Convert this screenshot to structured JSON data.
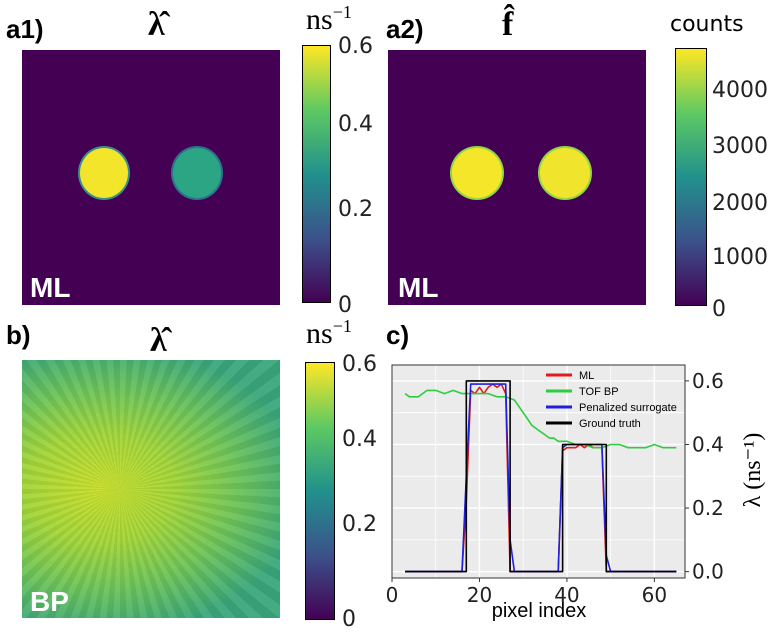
{
  "panels": {
    "a1": {
      "label": "a1)",
      "title": "λ̂",
      "img_label": "ML",
      "unit_base": "ns",
      "unit_exp": "−1",
      "colorbar_ticks": [
        "0.6",
        "0.4",
        "0.2",
        "0"
      ]
    },
    "a2": {
      "label": "a2)",
      "title": "f̂",
      "img_label": "ML",
      "unit_text": "counts",
      "colorbar_ticks": [
        "4000",
        "3000",
        "2000",
        "1000",
        "0"
      ]
    },
    "b": {
      "label": "b)",
      "title": "λ̂",
      "img_label": "BP",
      "unit_base": "ns",
      "unit_exp": "−1",
      "colorbar_ticks": [
        "0.6",
        "0.4",
        "0.2",
        "0"
      ]
    },
    "c": {
      "label": "c)"
    }
  },
  "colors": {
    "viridis_dark": "#440154",
    "viridis_yellow": "#fde725",
    "ml": "#e31a1c",
    "tof_bp": "#2ecc40",
    "penalized": "#1f1fe0",
    "ground_truth": "#000000",
    "plot_bg": "#ebebeb"
  },
  "chart_data": {
    "type": "line",
    "title": "",
    "xlabel": "pixel index",
    "ylabel": "λ (ns⁻¹)",
    "xlim": [
      0,
      67
    ],
    "ylim": [
      -0.02,
      0.65
    ],
    "x_ticks": [
      "0",
      "20",
      "40",
      "60"
    ],
    "x_tick_values": [
      0,
      20,
      40,
      60
    ],
    "y_ticks": [
      "0.0",
      "0.2",
      "0.4",
      "0.6"
    ],
    "y_tick_values": [
      0.0,
      0.2,
      0.4,
      0.6
    ],
    "legend_position": "top-right",
    "series": [
      {
        "name": "ML",
        "color": "#e31a1c",
        "x": [
          3,
          16,
          17,
          18,
          19,
          20,
          21,
          22,
          23,
          24,
          25,
          26,
          27,
          28,
          38,
          39,
          40,
          41,
          42,
          43,
          44,
          45,
          46,
          47,
          48,
          49,
          50,
          65
        ],
        "y": [
          0.0,
          0.0,
          0.22,
          0.57,
          0.56,
          0.58,
          0.56,
          0.58,
          0.59,
          0.58,
          0.59,
          0.56,
          0.0,
          0.0,
          0.0,
          0.38,
          0.39,
          0.39,
          0.39,
          0.4,
          0.39,
          0.4,
          0.39,
          0.39,
          0.39,
          0.0,
          0.0,
          0.0
        ]
      },
      {
        "name": "TOF BP",
        "color": "#2ecc40",
        "x": [
          3,
          4,
          5,
          6,
          7,
          8,
          9,
          10,
          12,
          14,
          16,
          18,
          20,
          22,
          24,
          26,
          28,
          29,
          30,
          31,
          32,
          33,
          34,
          35,
          36,
          37,
          38,
          40,
          42,
          44,
          46,
          48,
          50,
          52,
          54,
          56,
          58,
          60,
          62,
          64,
          65
        ],
        "y": [
          0.56,
          0.55,
          0.55,
          0.55,
          0.56,
          0.57,
          0.57,
          0.57,
          0.56,
          0.57,
          0.56,
          0.56,
          0.56,
          0.56,
          0.55,
          0.55,
          0.54,
          0.52,
          0.5,
          0.48,
          0.46,
          0.45,
          0.44,
          0.43,
          0.42,
          0.42,
          0.41,
          0.41,
          0.4,
          0.4,
          0.39,
          0.39,
          0.4,
          0.4,
          0.39,
          0.39,
          0.39,
          0.4,
          0.39,
          0.39,
          0.39
        ]
      },
      {
        "name": "Penalized surrogate",
        "color": "#1f1fe0",
        "x": [
          3,
          16,
          17,
          18,
          26,
          27,
          28,
          38,
          39,
          40,
          48,
          49,
          50,
          65
        ],
        "y": [
          0.0,
          0.0,
          0.3,
          0.59,
          0.59,
          0.1,
          0.0,
          0.0,
          0.39,
          0.4,
          0.4,
          0.05,
          0.0,
          0.0
        ]
      },
      {
        "name": "Ground truth",
        "color": "#000000",
        "x": [
          3,
          17,
          17,
          27,
          27,
          39,
          39,
          49,
          49,
          65
        ],
        "y": [
          0.0,
          0.0,
          0.6,
          0.6,
          0.0,
          0.0,
          0.4,
          0.4,
          0.0,
          0.0
        ]
      }
    ]
  }
}
